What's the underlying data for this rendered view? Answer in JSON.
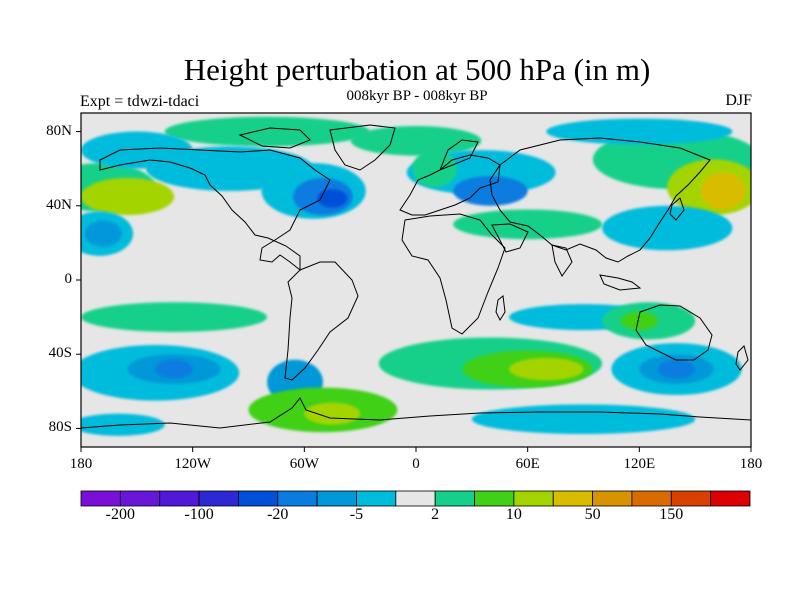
{
  "title": "Height perturbation at 500 hPa (in m)",
  "subtitle": "008kyr BP - 008kyr BP",
  "experiment": "Expt = tdwzi-tdaci",
  "season": "DJF",
  "map": {
    "projection": "cylindrical-equidistant",
    "lon_range": [
      -180,
      180
    ],
    "lat_range": [
      -90,
      90
    ],
    "lat_ticks": [
      {
        "value": 80,
        "label": "80N"
      },
      {
        "value": 40,
        "label": "40N"
      },
      {
        "value": 0,
        "label": "0"
      },
      {
        "value": -40,
        "label": "40S"
      },
      {
        "value": -80,
        "label": "80S"
      }
    ],
    "lon_ticks": [
      {
        "value": -180,
        "label": "180"
      },
      {
        "value": -120,
        "label": "120W"
      },
      {
        "value": -60,
        "label": "60W"
      },
      {
        "value": 0,
        "label": "0"
      },
      {
        "value": 60,
        "label": "60E"
      },
      {
        "value": 120,
        "label": "120E"
      },
      {
        "value": 180,
        "label": "180"
      }
    ]
  },
  "colorbar": {
    "colors": [
      "#7a10d8",
      "#6a16d8",
      "#5018d8",
      "#2c28d4",
      "#0050d8",
      "#0a7ce0",
      "#0098d8",
      "#00bcdc",
      "#e6e6e6",
      "#14d08a",
      "#40d018",
      "#a4d400",
      "#d8bc00",
      "#d89400",
      "#d86c00",
      "#d84000",
      "#dc0000"
    ],
    "labels": [
      {
        "after_box": 1,
        "text": "-200"
      },
      {
        "after_box": 3,
        "text": "-100"
      },
      {
        "after_box": 5,
        "text": "-20"
      },
      {
        "after_box": 7,
        "text": "-5"
      },
      {
        "after_box": 9,
        "text": "2"
      },
      {
        "after_box": 11,
        "text": "10"
      },
      {
        "after_box": 13,
        "text": "50"
      },
      {
        "after_box": 15,
        "text": "150"
      }
    ]
  },
  "field_regions": [
    {
      "lon": -80,
      "lat": 80,
      "rx": 55,
      "ry": 8,
      "color": "#14d08a"
    },
    {
      "lon": -100,
      "lat": 60,
      "rx": 45,
      "ry": 12,
      "color": "#00bcdc"
    },
    {
      "lon": -55,
      "lat": 48,
      "rx": 28,
      "ry": 15,
      "color": "#00bcdc"
    },
    {
      "lon": -50,
      "lat": 45,
      "rx": 16,
      "ry": 10,
      "color": "#0a7ce0"
    },
    {
      "lon": -45,
      "lat": 44,
      "rx": 8,
      "ry": 5,
      "color": "#0050d8"
    },
    {
      "lon": -170,
      "lat": 50,
      "rx": 30,
      "ry": 13,
      "color": "#14d08a"
    },
    {
      "lon": -155,
      "lat": 45,
      "rx": 25,
      "ry": 10,
      "color": "#a4d400"
    },
    {
      "lon": -170,
      "lat": 25,
      "rx": 18,
      "ry": 12,
      "color": "#00bcdc"
    },
    {
      "lon": -168,
      "lat": 25,
      "rx": 10,
      "ry": 7,
      "color": "#0098d8"
    },
    {
      "lon": -150,
      "lat": 70,
      "rx": 30,
      "ry": 10,
      "color": "#00bcdc"
    },
    {
      "lon": 0,
      "lat": 75,
      "rx": 35,
      "ry": 8,
      "color": "#14d08a"
    },
    {
      "lon": 35,
      "lat": 58,
      "rx": 40,
      "ry": 12,
      "color": "#00bcdc"
    },
    {
      "lon": 40,
      "lat": 48,
      "rx": 20,
      "ry": 8,
      "color": "#0a7ce0"
    },
    {
      "lon": 60,
      "lat": 30,
      "rx": 40,
      "ry": 8,
      "color": "#14d08a"
    },
    {
      "lon": 10,
      "lat": 60,
      "rx": 12,
      "ry": 10,
      "color": "#14d08a"
    },
    {
      "lon": 140,
      "lat": 65,
      "rx": 45,
      "ry": 16,
      "color": "#14d08a"
    },
    {
      "lon": 160,
      "lat": 50,
      "rx": 25,
      "ry": 15,
      "color": "#a4d400"
    },
    {
      "lon": 165,
      "lat": 48,
      "rx": 12,
      "ry": 10,
      "color": "#d8bc00"
    },
    {
      "lon": 135,
      "lat": 28,
      "rx": 35,
      "ry": 12,
      "color": "#00bcdc"
    },
    {
      "lon": 120,
      "lat": 80,
      "rx": 50,
      "ry": 7,
      "color": "#00bcdc"
    },
    {
      "lon": -130,
      "lat": -20,
      "rx": 50,
      "ry": 8,
      "color": "#14d08a"
    },
    {
      "lon": -140,
      "lat": -50,
      "rx": 45,
      "ry": 15,
      "color": "#00bcdc"
    },
    {
      "lon": -130,
      "lat": -48,
      "rx": 25,
      "ry": 8,
      "color": "#0098d8"
    },
    {
      "lon": -130,
      "lat": -48,
      "rx": 10,
      "ry": 5,
      "color": "#0a7ce0"
    },
    {
      "lon": -65,
      "lat": -55,
      "rx": 15,
      "ry": 12,
      "color": "#0098d8"
    },
    {
      "lon": -50,
      "lat": -70,
      "rx": 40,
      "ry": 12,
      "color": "#40d018"
    },
    {
      "lon": -45,
      "lat": -72,
      "rx": 15,
      "ry": 6,
      "color": "#a4d400"
    },
    {
      "lon": 40,
      "lat": -45,
      "rx": 60,
      "ry": 14,
      "color": "#14d08a"
    },
    {
      "lon": 60,
      "lat": -48,
      "rx": 35,
      "ry": 10,
      "color": "#40d018"
    },
    {
      "lon": 70,
      "lat": -48,
      "rx": 20,
      "ry": 6,
      "color": "#a4d400"
    },
    {
      "lon": 90,
      "lat": -20,
      "rx": 40,
      "ry": 7,
      "color": "#00bcdc"
    },
    {
      "lon": 125,
      "lat": -22,
      "rx": 25,
      "ry": 10,
      "color": "#14d08a"
    },
    {
      "lon": 120,
      "lat": -22,
      "rx": 10,
      "ry": 5,
      "color": "#40d018"
    },
    {
      "lon": 140,
      "lat": -48,
      "rx": 35,
      "ry": 14,
      "color": "#00bcdc"
    },
    {
      "lon": 140,
      "lat": -48,
      "rx": 20,
      "ry": 8,
      "color": "#0098d8"
    },
    {
      "lon": 140,
      "lat": -48,
      "rx": 10,
      "ry": 5,
      "color": "#0a7ce0"
    },
    {
      "lon": 90,
      "lat": -75,
      "rx": 60,
      "ry": 8,
      "color": "#00bcdc"
    },
    {
      "lon": -160,
      "lat": -78,
      "rx": 25,
      "ry": 6,
      "color": "#00bcdc"
    }
  ]
}
